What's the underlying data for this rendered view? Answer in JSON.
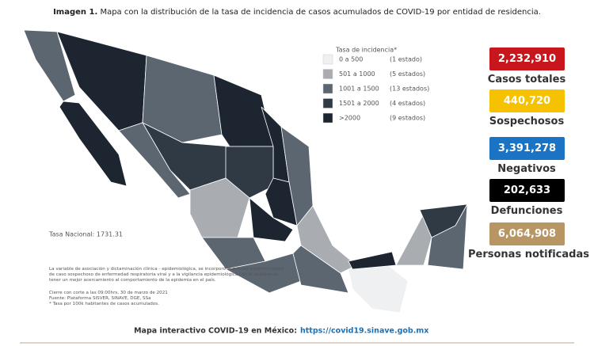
{
  "header": {
    "label": "Imagen 1.",
    "title": "Mapa con la distribución de la tasa de incidencia de casos acumulados de COVID-19 por entidad de residencia."
  },
  "legend": {
    "title": "Tasa de incidencia*",
    "items": [
      {
        "range": "0 a  500",
        "count": "(1 estado)",
        "color": "#eef0f2"
      },
      {
        "range": "501 a  1000",
        "count": "(5 estados)",
        "color": "#a9adb2"
      },
      {
        "range": "1001 a  1500",
        "count": "(13 estados)",
        "color": "#5c6670"
      },
      {
        "range": "1501 a  2000",
        "count": "(4 estados)",
        "color": "#2f3a45"
      },
      {
        "range": ">2000",
        "count": "(9 estados)",
        "color": "#1c2530"
      }
    ]
  },
  "national_rate": "Tasa Nacional: 1731.31",
  "stats": [
    {
      "value": "2,232,910",
      "label": "Casos totales",
      "color": "#c8161d"
    },
    {
      "value": "440,720",
      "label": "Sospechosos",
      "color": "#f6c200"
    },
    {
      "value": "3,391,278",
      "label": "Negativos",
      "color": "#1a73c4"
    },
    {
      "value": "202,633",
      "label": "Defunciones",
      "color": "#000000"
    },
    {
      "value": "6,064,908",
      "label": "Personas notificadas",
      "color": "#b89663"
    }
  ],
  "notes": [
    "La variable de asociación y dictaminación clínica - epidemiológica, se incorporó al estudio epidemiológico de caso sospechoso de enfermedad respiratoria viral y a la vigilancia epidemiológica con el objetivo de tener un mejor acercamiento al comportamiento de la epidemia en el país.",
    "Cierre con corte a las 09:00hrs, 30 de marzo de 2021",
    "Fuente: Plataforma SISVER, SINAVE, DGE, SSa",
    "* Tasa por 100k habitantes de casos acumulados."
  ],
  "footer": {
    "text": "Mapa interactivo COVID-19 en México:",
    "link": "https://covid19.sinave.gob.mx"
  }
}
